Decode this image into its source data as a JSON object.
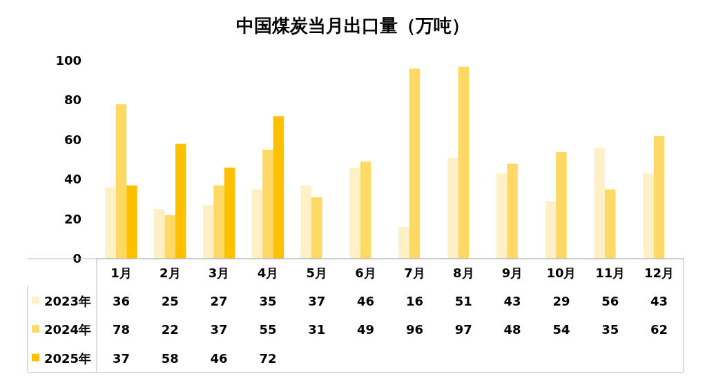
{
  "chart_data": {
    "type": "bar",
    "title": "中国煤炭当月出口量（万吨）",
    "categories": [
      "1月",
      "2月",
      "3月",
      "4月",
      "5月",
      "6月",
      "7月",
      "8月",
      "9月",
      "10月",
      "11月",
      "12月"
    ],
    "series": [
      {
        "name": "2023年",
        "color": "#fff0c8",
        "values": [
          36,
          25,
          27,
          35,
          37,
          46,
          16,
          51,
          43,
          29,
          56,
          43
        ]
      },
      {
        "name": "2024年",
        "color": "#ffd966",
        "values": [
          78,
          22,
          37,
          55,
          31,
          49,
          96,
          97,
          48,
          54,
          35,
          62
        ]
      },
      {
        "name": "2025年",
        "color": "#ffc000",
        "values": [
          37,
          58,
          46,
          72,
          null,
          null,
          null,
          null,
          null,
          null,
          null,
          null
        ]
      }
    ],
    "ylim": [
      0,
      100
    ],
    "yticks": [
      0,
      20,
      40,
      60,
      80,
      100
    ],
    "data_labels": true,
    "legend": "bottom"
  }
}
